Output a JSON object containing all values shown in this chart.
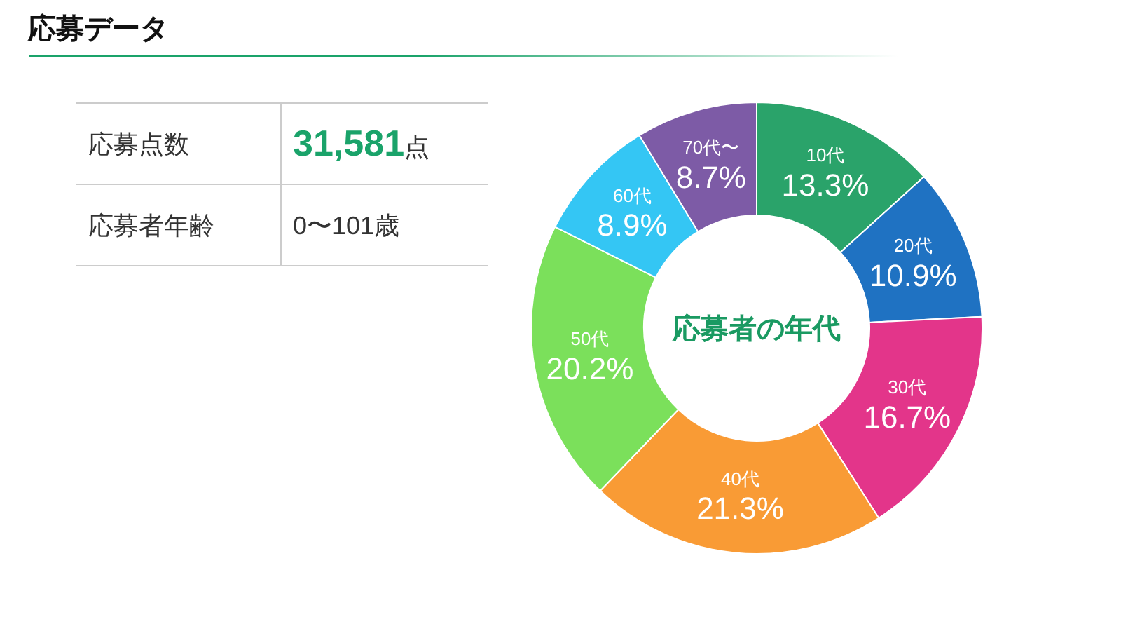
{
  "chart_data": {
    "type": "donut",
    "title": "応募データ",
    "categories": [
      "10代",
      "20代",
      "30代",
      "40代",
      "50代",
      "60代",
      "70代〜"
    ],
    "values": [
      13.3,
      10.9,
      16.7,
      21.3,
      20.2,
      8.9,
      8.7
    ],
    "colors": [
      "#2aa36a",
      "#1f72c2",
      "#e3358a",
      "#f99b35",
      "#7be05b",
      "#34c6f4",
      "#7d5ba6"
    ],
    "value_labels": [
      "13.3%",
      "10.9%",
      "16.7%",
      "21.3%",
      "20.2%",
      "8.9%",
      "8.7%"
    ],
    "annotations": [
      "応募点数",
      "31,581点",
      "応募者年齢",
      "0〜101歳",
      "応募者の年代"
    ]
  }
}
